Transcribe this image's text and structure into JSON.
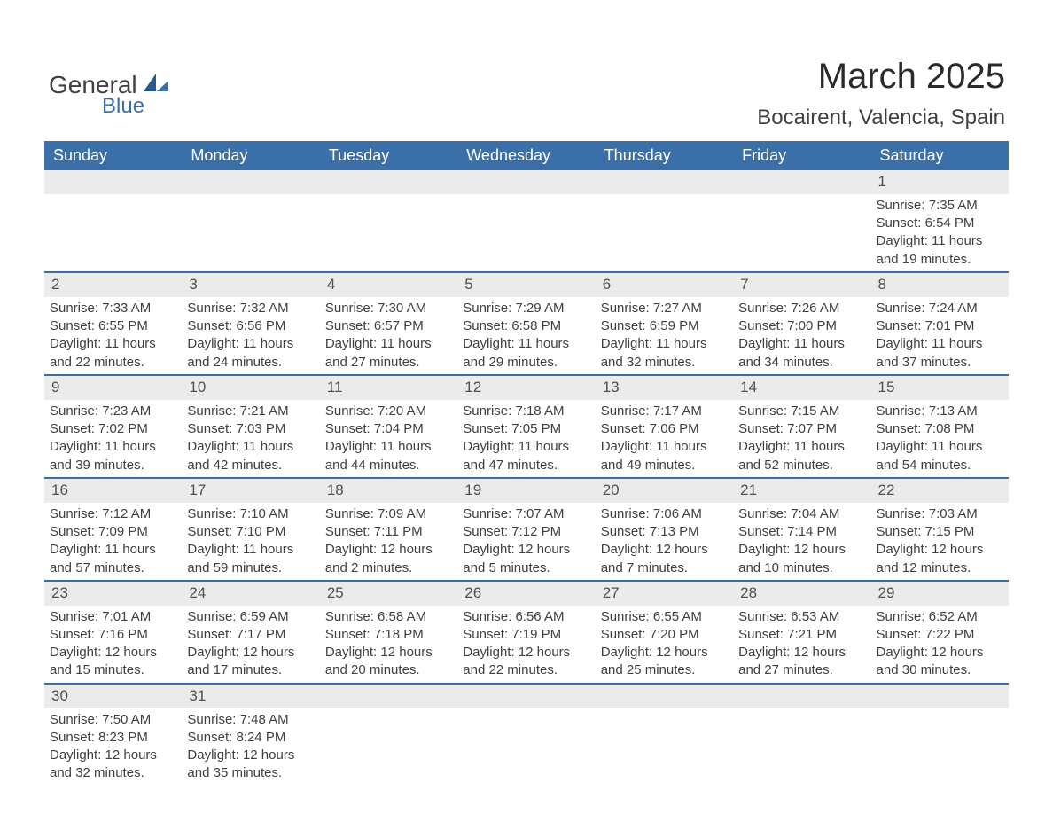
{
  "logo": {
    "word1": "General",
    "word2": "Blue",
    "sail_color": "#3b6fa8"
  },
  "header": {
    "title": "March 2025",
    "subtitle": "Bocairent, Valencia, Spain"
  },
  "dow_header_bg": "#3b6fa8",
  "dow": [
    "Sunday",
    "Monday",
    "Tuesday",
    "Wednesday",
    "Thursday",
    "Friday",
    "Saturday"
  ],
  "weeks": [
    [
      null,
      null,
      null,
      null,
      null,
      null,
      {
        "n": "1",
        "sr": "Sunrise: 7:35 AM",
        "ss": "Sunset: 6:54 PM",
        "d1": "Daylight: 11 hours",
        "d2": "and 19 minutes."
      }
    ],
    [
      {
        "n": "2",
        "sr": "Sunrise: 7:33 AM",
        "ss": "Sunset: 6:55 PM",
        "d1": "Daylight: 11 hours",
        "d2": "and 22 minutes."
      },
      {
        "n": "3",
        "sr": "Sunrise: 7:32 AM",
        "ss": "Sunset: 6:56 PM",
        "d1": "Daylight: 11 hours",
        "d2": "and 24 minutes."
      },
      {
        "n": "4",
        "sr": "Sunrise: 7:30 AM",
        "ss": "Sunset: 6:57 PM",
        "d1": "Daylight: 11 hours",
        "d2": "and 27 minutes."
      },
      {
        "n": "5",
        "sr": "Sunrise: 7:29 AM",
        "ss": "Sunset: 6:58 PM",
        "d1": "Daylight: 11 hours",
        "d2": "and 29 minutes."
      },
      {
        "n": "6",
        "sr": "Sunrise: 7:27 AM",
        "ss": "Sunset: 6:59 PM",
        "d1": "Daylight: 11 hours",
        "d2": "and 32 minutes."
      },
      {
        "n": "7",
        "sr": "Sunrise: 7:26 AM",
        "ss": "Sunset: 7:00 PM",
        "d1": "Daylight: 11 hours",
        "d2": "and 34 minutes."
      },
      {
        "n": "8",
        "sr": "Sunrise: 7:24 AM",
        "ss": "Sunset: 7:01 PM",
        "d1": "Daylight: 11 hours",
        "d2": "and 37 minutes."
      }
    ],
    [
      {
        "n": "9",
        "sr": "Sunrise: 7:23 AM",
        "ss": "Sunset: 7:02 PM",
        "d1": "Daylight: 11 hours",
        "d2": "and 39 minutes."
      },
      {
        "n": "10",
        "sr": "Sunrise: 7:21 AM",
        "ss": "Sunset: 7:03 PM",
        "d1": "Daylight: 11 hours",
        "d2": "and 42 minutes."
      },
      {
        "n": "11",
        "sr": "Sunrise: 7:20 AM",
        "ss": "Sunset: 7:04 PM",
        "d1": "Daylight: 11 hours",
        "d2": "and 44 minutes."
      },
      {
        "n": "12",
        "sr": "Sunrise: 7:18 AM",
        "ss": "Sunset: 7:05 PM",
        "d1": "Daylight: 11 hours",
        "d2": "and 47 minutes."
      },
      {
        "n": "13",
        "sr": "Sunrise: 7:17 AM",
        "ss": "Sunset: 7:06 PM",
        "d1": "Daylight: 11 hours",
        "d2": "and 49 minutes."
      },
      {
        "n": "14",
        "sr": "Sunrise: 7:15 AM",
        "ss": "Sunset: 7:07 PM",
        "d1": "Daylight: 11 hours",
        "d2": "and 52 minutes."
      },
      {
        "n": "15",
        "sr": "Sunrise: 7:13 AM",
        "ss": "Sunset: 7:08 PM",
        "d1": "Daylight: 11 hours",
        "d2": "and 54 minutes."
      }
    ],
    [
      {
        "n": "16",
        "sr": "Sunrise: 7:12 AM",
        "ss": "Sunset: 7:09 PM",
        "d1": "Daylight: 11 hours",
        "d2": "and 57 minutes."
      },
      {
        "n": "17",
        "sr": "Sunrise: 7:10 AM",
        "ss": "Sunset: 7:10 PM",
        "d1": "Daylight: 11 hours",
        "d2": "and 59 minutes."
      },
      {
        "n": "18",
        "sr": "Sunrise: 7:09 AM",
        "ss": "Sunset: 7:11 PM",
        "d1": "Daylight: 12 hours",
        "d2": "and 2 minutes."
      },
      {
        "n": "19",
        "sr": "Sunrise: 7:07 AM",
        "ss": "Sunset: 7:12 PM",
        "d1": "Daylight: 12 hours",
        "d2": "and 5 minutes."
      },
      {
        "n": "20",
        "sr": "Sunrise: 7:06 AM",
        "ss": "Sunset: 7:13 PM",
        "d1": "Daylight: 12 hours",
        "d2": "and 7 minutes."
      },
      {
        "n": "21",
        "sr": "Sunrise: 7:04 AM",
        "ss": "Sunset: 7:14 PM",
        "d1": "Daylight: 12 hours",
        "d2": "and 10 minutes."
      },
      {
        "n": "22",
        "sr": "Sunrise: 7:03 AM",
        "ss": "Sunset: 7:15 PM",
        "d1": "Daylight: 12 hours",
        "d2": "and 12 minutes."
      }
    ],
    [
      {
        "n": "23",
        "sr": "Sunrise: 7:01 AM",
        "ss": "Sunset: 7:16 PM",
        "d1": "Daylight: 12 hours",
        "d2": "and 15 minutes."
      },
      {
        "n": "24",
        "sr": "Sunrise: 6:59 AM",
        "ss": "Sunset: 7:17 PM",
        "d1": "Daylight: 12 hours",
        "d2": "and 17 minutes."
      },
      {
        "n": "25",
        "sr": "Sunrise: 6:58 AM",
        "ss": "Sunset: 7:18 PM",
        "d1": "Daylight: 12 hours",
        "d2": "and 20 minutes."
      },
      {
        "n": "26",
        "sr": "Sunrise: 6:56 AM",
        "ss": "Sunset: 7:19 PM",
        "d1": "Daylight: 12 hours",
        "d2": "and 22 minutes."
      },
      {
        "n": "27",
        "sr": "Sunrise: 6:55 AM",
        "ss": "Sunset: 7:20 PM",
        "d1": "Daylight: 12 hours",
        "d2": "and 25 minutes."
      },
      {
        "n": "28",
        "sr": "Sunrise: 6:53 AM",
        "ss": "Sunset: 7:21 PM",
        "d1": "Daylight: 12 hours",
        "d2": "and 27 minutes."
      },
      {
        "n": "29",
        "sr": "Sunrise: 6:52 AM",
        "ss": "Sunset: 7:22 PM",
        "d1": "Daylight: 12 hours",
        "d2": "and 30 minutes."
      }
    ],
    [
      {
        "n": "30",
        "sr": "Sunrise: 7:50 AM",
        "ss": "Sunset: 8:23 PM",
        "d1": "Daylight: 12 hours",
        "d2": "and 32 minutes."
      },
      {
        "n": "31",
        "sr": "Sunrise: 7:48 AM",
        "ss": "Sunset: 8:24 PM",
        "d1": "Daylight: 12 hours",
        "d2": "and 35 minutes."
      },
      null,
      null,
      null,
      null,
      null
    ]
  ]
}
